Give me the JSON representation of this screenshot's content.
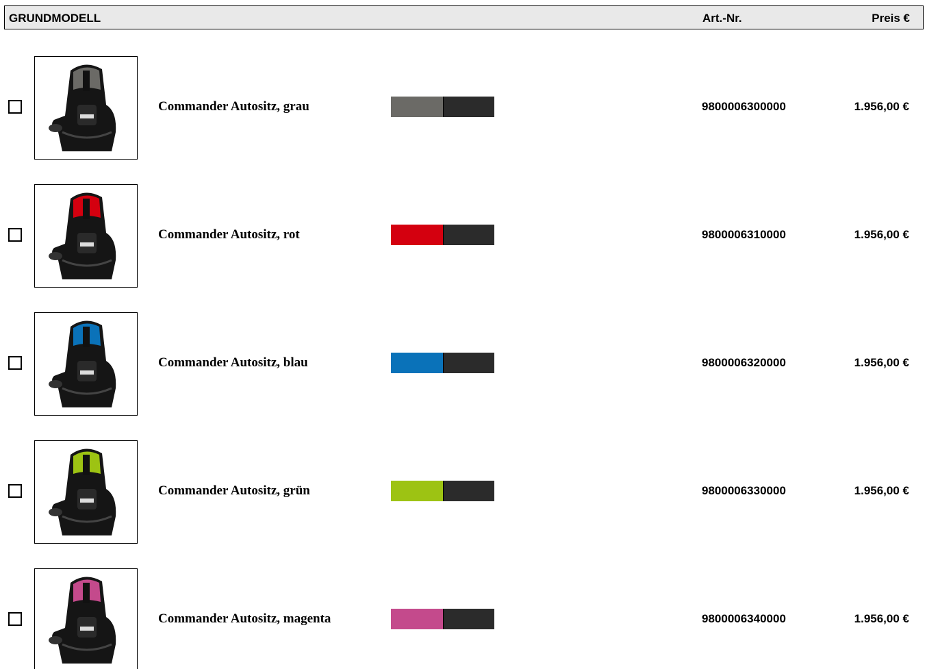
{
  "header": {
    "title": "GRUNDMODELL",
    "art_label": "Art.-Nr.",
    "price_label": "Preis €"
  },
  "rows": [
    {
      "name": "Commander Autositz, grau",
      "art": "9800006300000",
      "price": "1.956,00 €",
      "color": "#6b6a66"
    },
    {
      "name": "Commander Autositz, rot",
      "art": "9800006310000",
      "price": "1.956,00 €",
      "color": "#d4000f"
    },
    {
      "name": "Commander Autositz, blau",
      "art": "9800006320000",
      "price": "1.956,00 €",
      "color": "#0a72b9"
    },
    {
      "name": "Commander Autositz, grün",
      "art": "9800006330000",
      "price": "1.956,00 €",
      "color": "#9dc313"
    },
    {
      "name": "Commander Autositz, magenta",
      "art": "9800006340000",
      "price": "1.956,00 €",
      "color": "#c44a8c"
    }
  ]
}
